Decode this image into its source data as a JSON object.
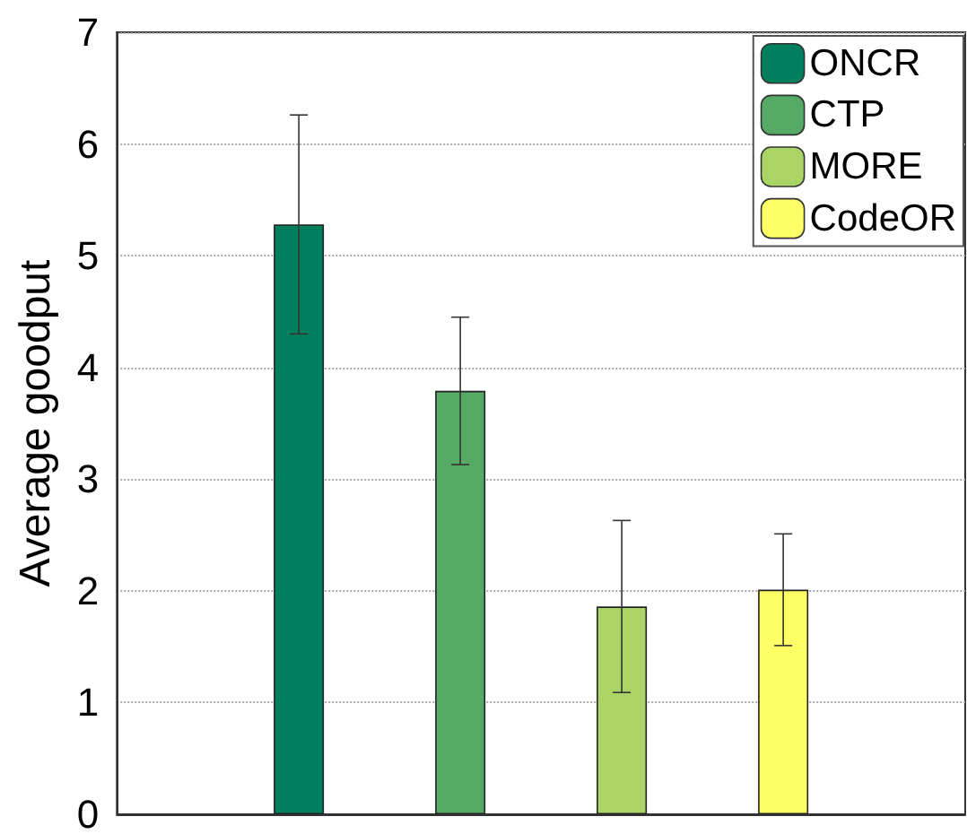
{
  "chart_data": {
    "type": "bar",
    "ylabel": "Average goodput",
    "categories": [
      null
    ],
    "series": [
      {
        "name": "ONCR",
        "color": "#007f5f",
        "values": [
          5.28
        ],
        "errors": [
          0.98
        ]
      },
      {
        "name": "CTP",
        "color": "#55aa66",
        "values": [
          3.79
        ],
        "errors": [
          0.66
        ]
      },
      {
        "name": "MORE",
        "color": "#aad466",
        "values": [
          1.86
        ],
        "errors": [
          0.77
        ]
      },
      {
        "name": "CodeOR",
        "color": "#ffff66",
        "values": [
          2.01
        ],
        "errors": [
          0.5
        ]
      }
    ],
    "ylim": [
      0,
      7
    ],
    "yticks": [
      0,
      1,
      2,
      3,
      4,
      5,
      6,
      7
    ],
    "grid": "y",
    "legend": "top right"
  }
}
